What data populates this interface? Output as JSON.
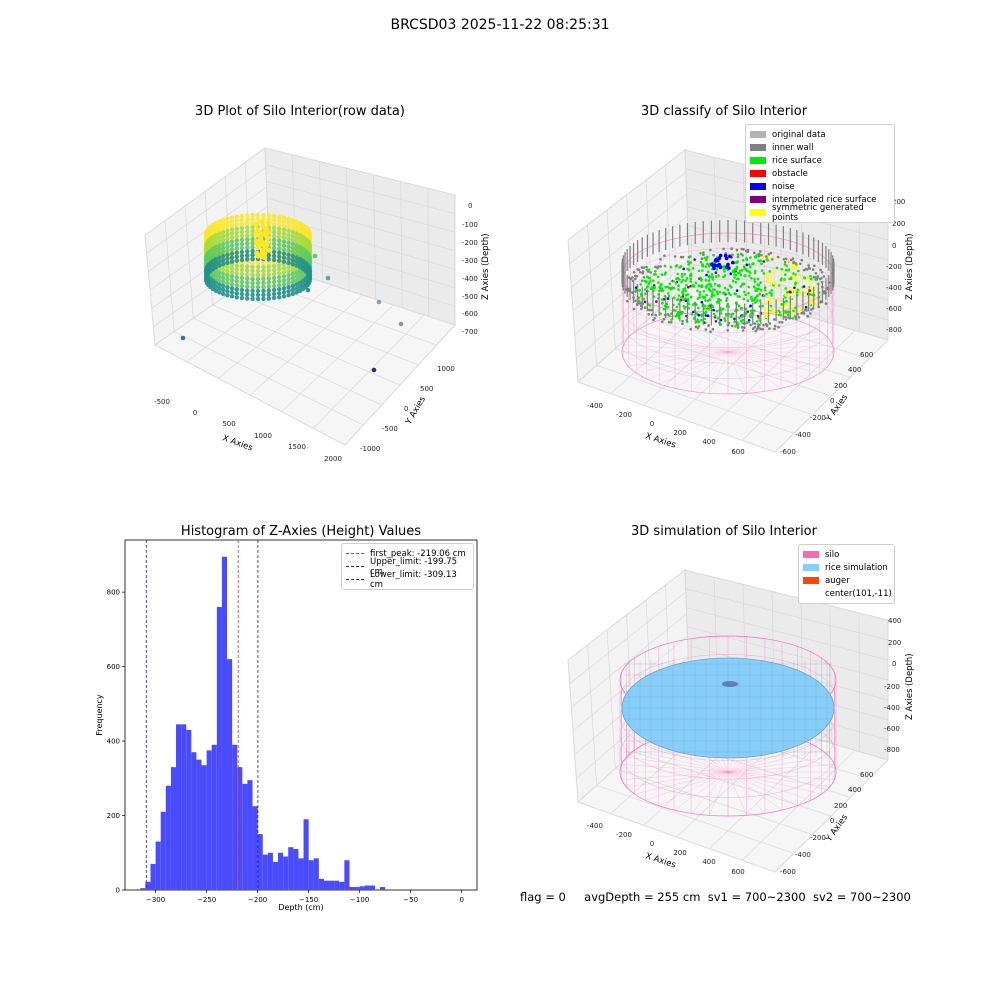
{
  "figure": {
    "suptitle": "BRCSD03 2025-11-22 08:25:31",
    "status_line": {
      "flag": "flag = 0",
      "avg_depth": "avgDepth = 255 cm",
      "sv1": "sv1 = 700~2300",
      "sv2": "sv2 = 700~2300"
    }
  },
  "chart_data": [
    {
      "type": "scatter",
      "title": "3D Plot of Silo Interior(row data)",
      "xlabel": "X Axies",
      "ylabel": "Y Axies",
      "zlabel": "Z Axies (Depth)",
      "x_ticks": [
        "-500",
        "0",
        "500",
        "1000",
        "1500",
        "2000"
      ],
      "y_ticks": [
        "-1000",
        "-500",
        "0",
        "500",
        "1000"
      ],
      "z_ticks": [
        "0",
        "-100",
        "-200",
        "-300",
        "-400",
        "-500",
        "-600",
        "-700"
      ],
      "colormap": "viridis",
      "outlier_points": [
        {
          "x": -450,
          "y": -200,
          "z": -600
        },
        {
          "x": 1700,
          "y": -700,
          "z": -580
        },
        {
          "x": 1500,
          "y": 300,
          "z": -560
        },
        {
          "x": 1400,
          "y": -900,
          "z": -650
        },
        {
          "x": 700,
          "y": 200,
          "z": -380
        },
        {
          "x": 600,
          "y": 100,
          "z": -330
        }
      ]
    },
    {
      "type": "scatter",
      "title": "3D classify of Silo Interior",
      "xlabel": "X Axies",
      "ylabel": "Y Axies",
      "zlabel": "Z Axies (Depth)",
      "x_ticks": [
        "-400",
        "-200",
        "0",
        "200",
        "400",
        "600"
      ],
      "y_ticks": [
        "-600",
        "-400",
        "-200",
        "0",
        "200",
        "400",
        "600"
      ],
      "z_ticks": [
        "200",
        "0",
        "-200",
        "-400",
        "-600",
        "-800"
      ],
      "z_top_tick": "200",
      "legend": [
        {
          "label": "original data",
          "color": "#b3b3b3"
        },
        {
          "label": "inner wall",
          "color": "#808080"
        },
        {
          "label": "rice surface",
          "color": "#00ee00"
        },
        {
          "label": "obstacle",
          "color": "#ff0000"
        },
        {
          "label": "noise",
          "color": "#0000ff"
        },
        {
          "label": "interpolated rice surface",
          "color": "#800080"
        },
        {
          "label": "symmetric generated points",
          "color": "#ffff00"
        }
      ]
    },
    {
      "type": "bar",
      "title": "Histogram of Z-Axies (Height) Values",
      "xlabel": "Depth (cm)",
      "ylabel": "Frequency",
      "xlim": [
        -330,
        15
      ],
      "ylim": [
        0,
        940
      ],
      "x_ticks": [
        -300,
        -250,
        -200,
        -150,
        -100,
        -50,
        0
      ],
      "y_ticks": [
        0,
        200,
        400,
        600,
        800
      ],
      "bar_color": "#4a4aff",
      "bin_start": -315,
      "bin_width": 5,
      "values": [
        5,
        22,
        70,
        130,
        210,
        280,
        330,
        445,
        445,
        430,
        370,
        350,
        335,
        375,
        390,
        760,
        895,
        620,
        390,
        330,
        285,
        295,
        225,
        150,
        95,
        100,
        75,
        100,
        90,
        115,
        110,
        85,
        190,
        80,
        85,
        30,
        25,
        25,
        25,
        22,
        80,
        8,
        8,
        10,
        12,
        12,
        0,
        8
      ],
      "vlines": [
        {
          "label": "first_peak: -219.06 cm",
          "x": -219.06,
          "color": "#e03030"
        },
        {
          "label": "Upper_limit: -199.75 cm",
          "x": -199.75,
          "color": "#1a1ad0"
        },
        {
          "label": "Lower_limit: -309.13 cm",
          "x": -309.13,
          "color": "#1a1ad0"
        }
      ]
    },
    {
      "type": "area",
      "title": "3D simulation of Silo Interior",
      "xlabel": "X Axies",
      "ylabel": "Y Axies",
      "zlabel": "Z Axies (Depth)",
      "x_ticks": [
        "-400",
        "-200",
        "0",
        "200",
        "400",
        "600"
      ],
      "y_ticks": [
        "-600",
        "-400",
        "-200",
        "0",
        "200",
        "400",
        "600"
      ],
      "z_ticks": [
        "400",
        "200",
        "0",
        "-200",
        "-400",
        "-600",
        "-800"
      ],
      "legend": [
        {
          "label": "silo",
          "color": "#ff69b4"
        },
        {
          "label": "rice simulation",
          "color": "#87cefa"
        },
        {
          "label": "auger",
          "color": "#ff4500"
        },
        {
          "label": "center(101,-11)",
          "color": ""
        }
      ]
    }
  ]
}
